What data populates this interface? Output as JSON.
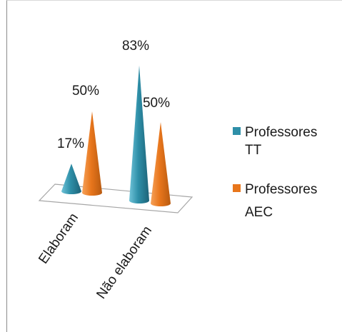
{
  "chart_data": {
    "type": "bar",
    "subtype": "3d-cone",
    "categories": [
      "Elaboram",
      "Não elaboram"
    ],
    "series": [
      {
        "name": "Professores TT",
        "values": [
          17,
          83
        ],
        "labels": [
          "17%",
          "83%"
        ],
        "color": "#2e8fa8"
      },
      {
        "name": "Professores AEC",
        "values": [
          50,
          50
        ],
        "labels": [
          "50%",
          "50%"
        ],
        "color": "#e8761c"
      }
    ],
    "legend_position": "right",
    "legend": [
      {
        "lines": [
          "Professores",
          "TT"
        ],
        "color": "#2e8fa8"
      },
      {
        "lines": [
          "Professores",
          "AEC"
        ],
        "color": "#e8761c"
      }
    ],
    "grid": false,
    "unit": "%"
  }
}
